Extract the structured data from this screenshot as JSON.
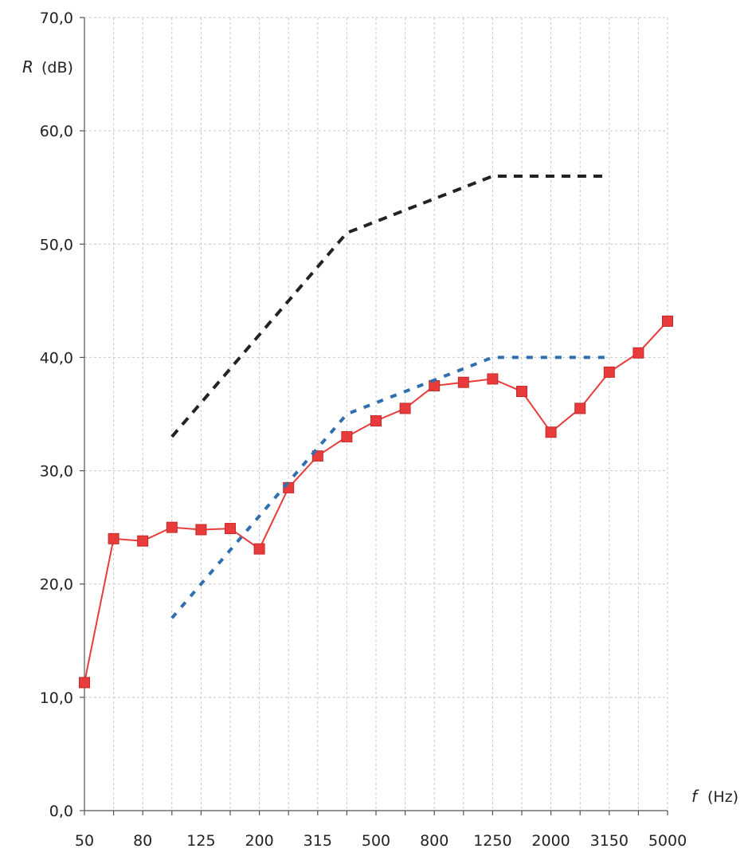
{
  "chart_data": {
    "type": "line",
    "x_categories": [
      "50",
      "63",
      "80",
      "100",
      "125",
      "160",
      "200",
      "250",
      "315",
      "400",
      "500",
      "630",
      "800",
      "1000",
      "1250",
      "1600",
      "2000",
      "2500",
      "3150",
      "4000",
      "5000"
    ],
    "x_tick_labels": [
      "50",
      "80",
      "125",
      "200",
      "315",
      "500",
      "800",
      "1250",
      "2000",
      "3150",
      "5000"
    ],
    "y_ticks": [
      0,
      10,
      20,
      30,
      40,
      50,
      60,
      70
    ],
    "y_tick_labels": [
      "0,0",
      "10,0",
      "20,0",
      "30,0",
      "40,0",
      "50,0",
      "60,0",
      "70,0"
    ],
    "ylim": [
      0,
      70
    ],
    "ylabel_symbol": "R",
    "ylabel_unit": "(dB)",
    "xlabel_symbol": "f",
    "xlabel_unit": "(Hz)",
    "grid": true,
    "series": [
      {
        "color": "#e83c3c",
        "marker": "square",
        "line_style": "solid",
        "x": [
          "50",
          "63",
          "80",
          "100",
          "125",
          "160",
          "200",
          "250",
          "315",
          "400",
          "500",
          "630",
          "800",
          "1000",
          "1250",
          "1600",
          "2000",
          "2500",
          "3150",
          "4000",
          "5000"
        ],
        "values": [
          11.3,
          24.0,
          23.8,
          25.0,
          24.8,
          24.9,
          23.1,
          28.5,
          31.3,
          33.0,
          34.4,
          35.5,
          37.5,
          37.8,
          38.1,
          37.0,
          33.4,
          35.5,
          38.7,
          40.4,
          43.2
        ]
      },
      {
        "color": "#2f6fb0",
        "marker": "none",
        "line_style": "dotted",
        "x": [
          "100",
          "125",
          "160",
          "200",
          "250",
          "315",
          "400",
          "500",
          "630",
          "800",
          "1000",
          "1250",
          "1600",
          "2000",
          "2500",
          "3150"
        ],
        "values": [
          17,
          20,
          23,
          26,
          29,
          32,
          35,
          36,
          37,
          38,
          39,
          40,
          40,
          40,
          40,
          40
        ]
      },
      {
        "color": "#222222",
        "marker": "none",
        "line_style": "dashed",
        "x": [
          "100",
          "125",
          "160",
          "200",
          "250",
          "315",
          "400",
          "500",
          "630",
          "800",
          "1000",
          "1250",
          "1600",
          "2000",
          "2500",
          "3150"
        ],
        "values": [
          33,
          36,
          39,
          42,
          45,
          48,
          51,
          52,
          53,
          54,
          55,
          56,
          56,
          56,
          56,
          56
        ]
      }
    ]
  }
}
